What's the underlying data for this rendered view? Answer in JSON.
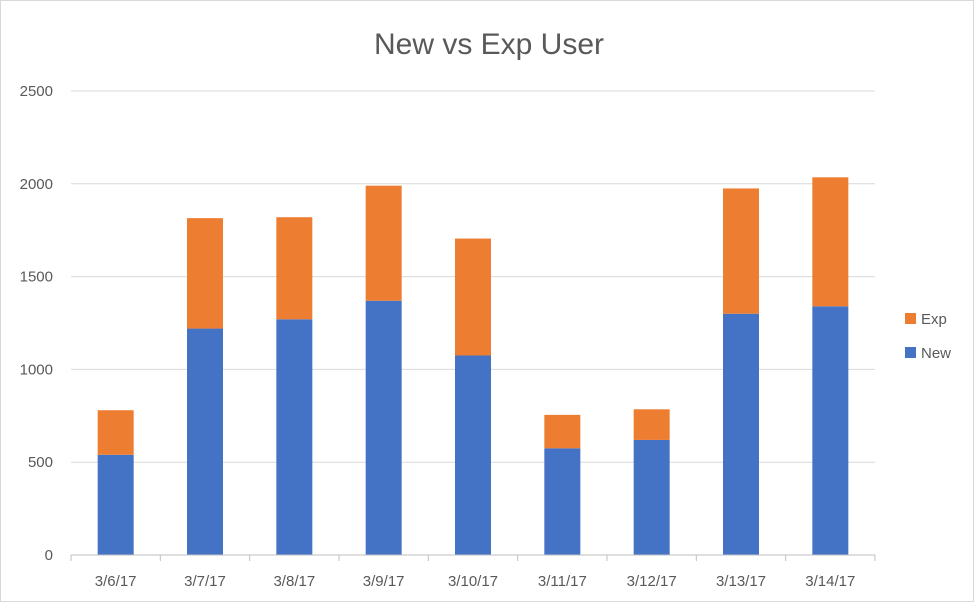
{
  "chart_data": {
    "type": "bar",
    "stacked": true,
    "title": "New vs Exp User",
    "xlabel": "",
    "ylabel": "",
    "categories": [
      "3/6/17",
      "3/7/17",
      "3/8/17",
      "3/9/17",
      "3/10/17",
      "3/11/17",
      "3/12/17",
      "3/13/17",
      "3/14/17"
    ],
    "series": [
      {
        "name": "New",
        "color": "#4472C4",
        "values": [
          540,
          1220,
          1270,
          1370,
          1075,
          575,
          620,
          1300,
          1340
        ]
      },
      {
        "name": "Exp",
        "color": "#ED7D31",
        "values": [
          240,
          595,
          550,
          620,
          630,
          180,
          165,
          675,
          695
        ]
      }
    ],
    "ylim": [
      0,
      2500
    ],
    "yticks": [
      0,
      500,
      1000,
      1500,
      2000,
      2500
    ],
    "grid": true,
    "legend_position": "right",
    "legend_order": [
      "Exp",
      "New"
    ]
  }
}
